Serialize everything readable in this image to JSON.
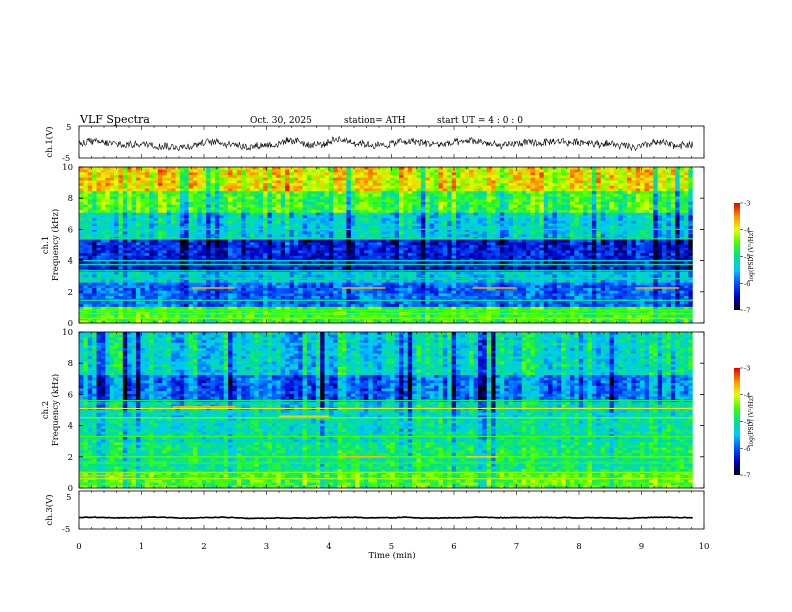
{
  "header": {
    "title": "VLF  Spectra",
    "date": "Oct. 30, 2025",
    "station": "station= ATH",
    "start_ut": "start  UT  =   4  : 0  : 0"
  },
  "colors": {
    "colormap": [
      "#000000",
      "#0000c8",
      "#0050ff",
      "#00c8ff",
      "#00e090",
      "#40ff00",
      "#e8ff00",
      "#ff9000",
      "#e00000",
      "#ffffff"
    ],
    "waveform": "#000000",
    "axes": "#000000"
  },
  "chart_data": [
    {
      "type": "line",
      "name": "ch1-waveform",
      "ylabel": "ch.1(V)",
      "ylim": [
        -5,
        5
      ],
      "yticks": [
        "5",
        "-5"
      ],
      "xlim": [
        0,
        10
      ],
      "series_note": "noisy voltage signal around -0.5 V with amplitude about ±2 V",
      "mean_v": -0.5,
      "amplitude_v": 2
    },
    {
      "type": "heatmap",
      "name": "ch1-spectrogram",
      "ylabel_top": "ch.1",
      "ylabel": "Frequency  (kHz)",
      "ylim": [
        0,
        10
      ],
      "yticks": [
        "0",
        "2",
        "4",
        "6",
        "8",
        "10"
      ],
      "xlim": [
        0,
        9.82
      ],
      "colorbar": {
        "label": "log(PSD) (V²/Hz)",
        "range": [
          -7,
          -3
        ],
        "ticks": [
          "-3",
          "-4",
          "-5",
          "-6",
          "-7"
        ]
      },
      "bands": [
        {
          "f_from": 0,
          "f_to": 1.0,
          "level": -4.6
        },
        {
          "f_from": 1.0,
          "f_to": 2.6,
          "level": -5.9
        },
        {
          "f_from": 2.6,
          "f_to": 3.3,
          "level": -5.4
        },
        {
          "f_from": 3.3,
          "f_to": 5.4,
          "level": -6.3
        },
        {
          "f_from": 5.4,
          "f_to": 7.0,
          "level": -5.3
        },
        {
          "f_from": 7.0,
          "f_to": 8.5,
          "level": -4.6
        },
        {
          "f_from": 8.5,
          "f_to": 10,
          "level": -3.9
        }
      ],
      "lines_khz": [
        0.3,
        0.6,
        0.8,
        1.45,
        2.85,
        3.35,
        3.75,
        4.0,
        5.4,
        6.0
      ],
      "line_levels": [
        -4.3,
        -4.4,
        -4.5,
        -5.0,
        -5.1,
        -5.0,
        -5.0,
        -5.2,
        -4.9,
        -5.2
      ],
      "segments": [
        {
          "t0": 1.8,
          "t1": 2.5,
          "f": 2.25,
          "level": -3.6
        },
        {
          "t0": 4.2,
          "t1": 4.9,
          "f": 2.25,
          "level": -3.6
        },
        {
          "t0": 6.3,
          "t1": 7.0,
          "f": 2.25,
          "level": -3.6
        },
        {
          "t0": 8.9,
          "t1": 9.6,
          "f": 2.25,
          "level": -3.6
        }
      ]
    },
    {
      "type": "heatmap",
      "name": "ch2-spectrogram",
      "ylabel_top": "ch.2",
      "ylabel": "Frequency  (kHz)",
      "ylim": [
        0,
        10
      ],
      "yticks": [
        "0",
        "2",
        "4",
        "6",
        "8",
        "10"
      ],
      "xlim": [
        0,
        9.82
      ],
      "colorbar": {
        "label": "log(PSD) (V²/Hz)",
        "range": [
          -7,
          -3
        ],
        "ticks": [
          "-3",
          "-4",
          "-5",
          "-6",
          "-7"
        ]
      },
      "bands": [
        {
          "f_from": 0,
          "f_to": 1.0,
          "level": -4.5
        },
        {
          "f_from": 1.0,
          "f_to": 3.0,
          "level": -4.9
        },
        {
          "f_from": 3.0,
          "f_to": 4.5,
          "level": -5.1
        },
        {
          "f_from": 4.5,
          "f_to": 5.6,
          "level": -5.2
        },
        {
          "f_from": 5.6,
          "f_to": 7.2,
          "level": -5.8
        },
        {
          "f_from": 7.2,
          "f_to": 10,
          "level": -5.2
        }
      ],
      "lines_khz": [
        0.6,
        1.0,
        1.6,
        2.0,
        3.3,
        4.5,
        5.1,
        5.6
      ],
      "line_levels": [
        -4.2,
        -4.3,
        -4.6,
        -4.4,
        -4.5,
        -4.3,
        -4.0,
        -4.8
      ],
      "segments": [
        {
          "t0": 1.5,
          "t1": 2.5,
          "f": 5.2,
          "level": -3.7
        },
        {
          "t0": 3.2,
          "t1": 4.0,
          "f": 4.6,
          "level": -3.8
        },
        {
          "t0": 4.2,
          "t1": 4.9,
          "f": 2.0,
          "level": -3.7
        },
        {
          "t0": 6.2,
          "t1": 6.7,
          "f": 2.0,
          "level": -3.8
        },
        {
          "t0": 0.0,
          "t1": 0.9,
          "f": 0.8,
          "level": -3.7
        }
      ]
    },
    {
      "type": "line",
      "name": "ch3-waveform",
      "ylabel": "ch.3(V)",
      "ylim": [
        -5,
        5
      ],
      "yticks": [
        "5",
        "-5"
      ],
      "xlim": [
        0,
        10
      ],
      "series_note": "flat signal near -2 V",
      "mean_v": -2,
      "amplitude_v": 0.3,
      "xlabel": "Time  (min)",
      "xticks": [
        "0",
        "1",
        "2",
        "3",
        "4",
        "5",
        "6",
        "7",
        "8",
        "9",
        "10"
      ]
    }
  ]
}
